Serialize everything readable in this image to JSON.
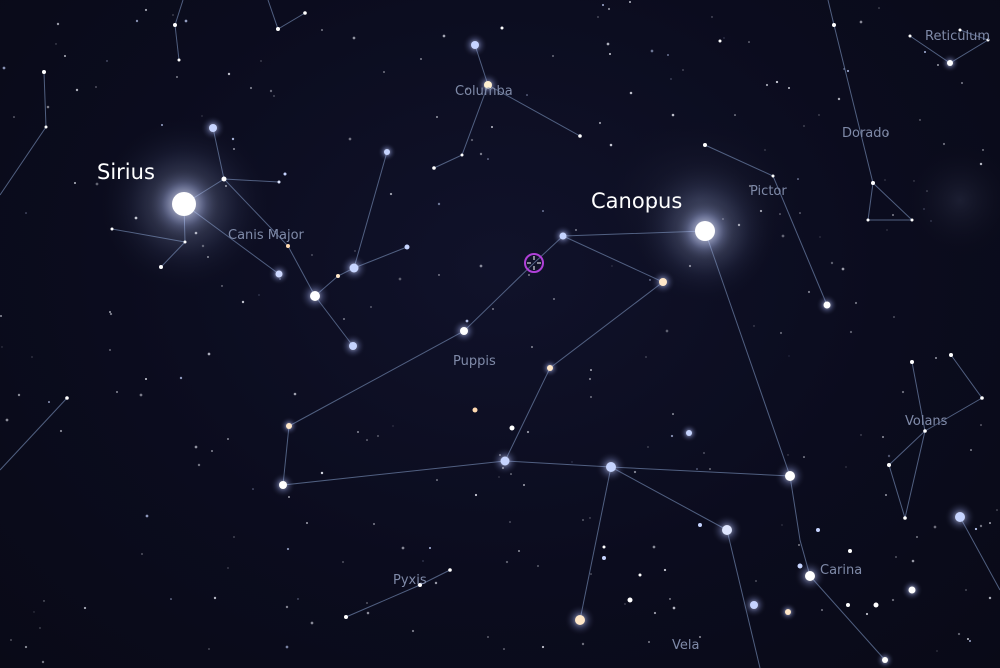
{
  "view": {
    "constellation_labels": {
      "columba": "Columba",
      "reticulum": "Reticulum",
      "dorado": "Dorado",
      "pictor": "Pictor",
      "canis_major": "Canis Major",
      "puppis": "Puppis",
      "volans": "Volans",
      "carina": "Carina",
      "pyxis": "Pyxis",
      "vela": "Vela"
    },
    "star_labels": {
      "sirius": "Sirius",
      "canopus": "Canopus"
    },
    "colors": {
      "sky_background": "#0b0c1c",
      "constellation_line": "#5d6e92",
      "constellation_label": "#7f8aa8",
      "star_label": "#ffffff",
      "selection_marker": "#b040d8"
    },
    "icons": {
      "selection_marker": "target-reticle-icon"
    }
  }
}
